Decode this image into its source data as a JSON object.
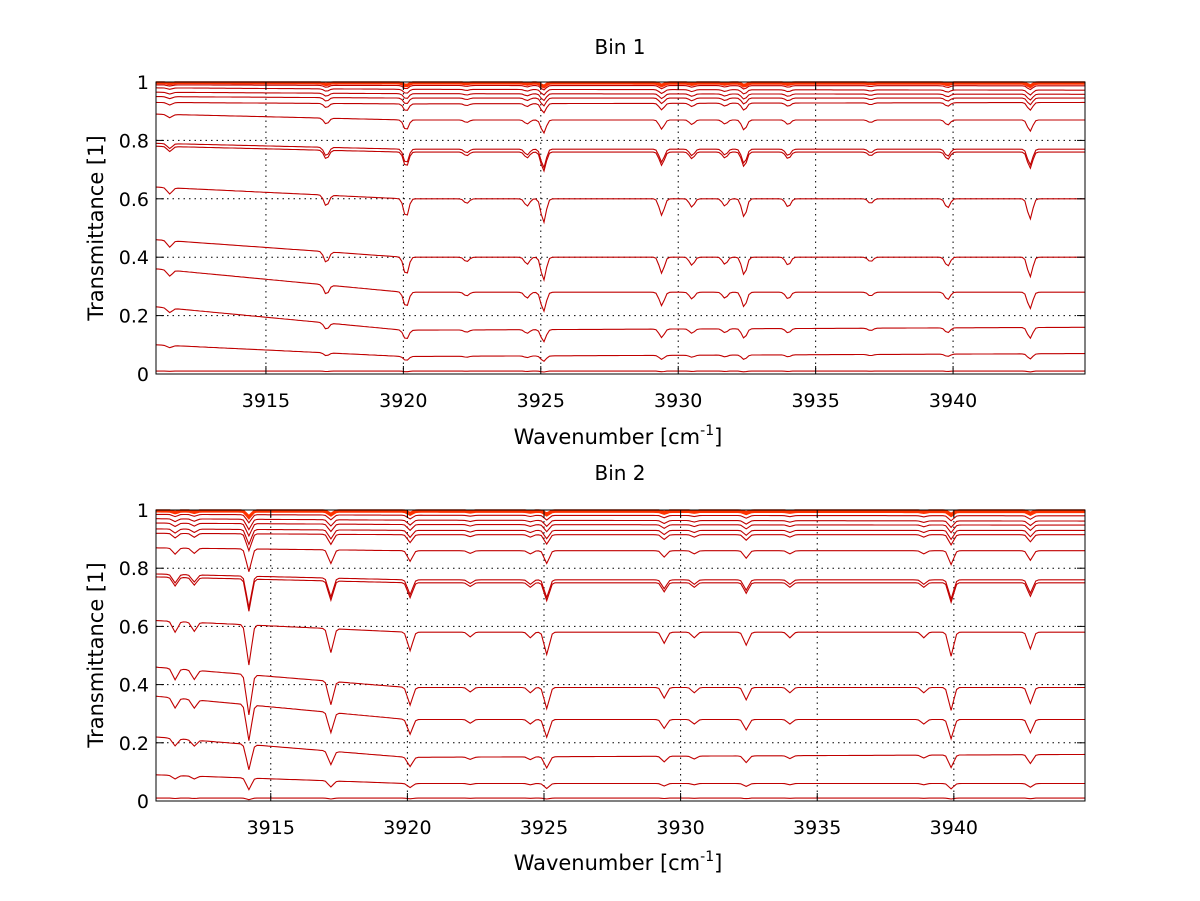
{
  "chart_data": [
    {
      "type": "line",
      "title": "Bin 1",
      "xlabel_main": "Wavenumber [cm",
      "xlabel_sup": "-1",
      "xlabel_close": "]",
      "ylabel": "Transmittance [1]",
      "xlim": [
        3911,
        3944.8
      ],
      "ylim": [
        0,
        1
      ],
      "xticks": [
        3915,
        3920,
        3925,
        3930,
        3935,
        3940
      ],
      "yticks": [
        0,
        0.2,
        0.4,
        0.6,
        0.8,
        1
      ],
      "ytick_labels": [
        "0",
        "0.2",
        "0.4",
        "0.6",
        "0.8",
        "1"
      ],
      "grid": true,
      "line_color": "#c00000",
      "top_line_color": "#ff3300",
      "n_series": 17,
      "series_levels": {
        "wavenumber": [
          3911,
          3920,
          3944.8
        ],
        "levels": [
          [
            1.0,
            1.0,
            1.0
          ],
          [
            0.998,
            0.997,
            0.996
          ],
          [
            0.995,
            0.994,
            0.993
          ],
          [
            0.99,
            0.988,
            0.987
          ],
          [
            0.98,
            0.975,
            0.972
          ],
          [
            0.965,
            0.96,
            0.958
          ],
          [
            0.95,
            0.945,
            0.945
          ],
          [
            0.93,
            0.925,
            0.93
          ],
          [
            0.89,
            0.87,
            0.87
          ],
          [
            0.79,
            0.77,
            0.77
          ],
          [
            0.78,
            0.76,
            0.76
          ],
          [
            0.64,
            0.6,
            0.6
          ],
          [
            0.46,
            0.4,
            0.4
          ],
          [
            0.36,
            0.28,
            0.28
          ],
          [
            0.23,
            0.15,
            0.16
          ],
          [
            0.1,
            0.06,
            0.07
          ],
          [
            0.01,
            0.01,
            0.01
          ]
        ]
      },
      "absorption_lines": [
        {
          "wavenumber": 3911.5,
          "depth": 0.35
        },
        {
          "wavenumber": 3917.2,
          "depth": 0.6
        },
        {
          "wavenumber": 3920.1,
          "depth": 1.0
        },
        {
          "wavenumber": 3922.3,
          "depth": 0.25
        },
        {
          "wavenumber": 3924.5,
          "depth": 0.4
        },
        {
          "wavenumber": 3925.1,
          "depth": 1.3
        },
        {
          "wavenumber": 3929.4,
          "depth": 0.9
        },
        {
          "wavenumber": 3930.5,
          "depth": 0.45
        },
        {
          "wavenumber": 3931.7,
          "depth": 0.4
        },
        {
          "wavenumber": 3932.4,
          "depth": 1.0
        },
        {
          "wavenumber": 3934.0,
          "depth": 0.45
        },
        {
          "wavenumber": 3937.0,
          "depth": 0.25
        },
        {
          "wavenumber": 3939.8,
          "depth": 0.5
        },
        {
          "wavenumber": 3942.8,
          "depth": 1.1
        }
      ]
    },
    {
      "type": "line",
      "title": "Bin 2",
      "xlabel_main": "Wavenumber [cm",
      "xlabel_sup": "-1",
      "xlabel_close": "]",
      "ylabel": "Transmittance [1]",
      "xlim": [
        3910.8,
        3944.8
      ],
      "ylim": [
        0,
        1
      ],
      "xticks": [
        3915,
        3920,
        3925,
        3930,
        3935,
        3940
      ],
      "yticks": [
        0,
        0.2,
        0.4,
        0.6,
        0.8,
        1
      ],
      "ytick_labels": [
        "0",
        "0.2",
        "0.4",
        "0.6",
        "0.8",
        "1"
      ],
      "grid": true,
      "line_color": "#c00000",
      "top_line_color": "#ff3300",
      "n_series": 17,
      "series_levels": {
        "wavenumber": [
          3910.8,
          3920,
          3944.8
        ],
        "levels": [
          [
            1.0,
            1.0,
            1.0
          ],
          [
            0.998,
            0.997,
            0.996
          ],
          [
            0.994,
            0.993,
            0.992
          ],
          [
            0.985,
            0.982,
            0.98
          ],
          [
            0.97,
            0.965,
            0.962
          ],
          [
            0.955,
            0.95,
            0.948
          ],
          [
            0.935,
            0.93,
            0.93
          ],
          [
            0.92,
            0.915,
            0.915
          ],
          [
            0.87,
            0.86,
            0.86
          ],
          [
            0.78,
            0.76,
            0.76
          ],
          [
            0.77,
            0.75,
            0.75
          ],
          [
            0.62,
            0.58,
            0.58
          ],
          [
            0.46,
            0.39,
            0.39
          ],
          [
            0.36,
            0.28,
            0.28
          ],
          [
            0.22,
            0.15,
            0.16
          ],
          [
            0.09,
            0.06,
            0.06
          ],
          [
            0.01,
            0.01,
            0.01
          ]
        ]
      },
      "absorption_lines": [
        {
          "wavenumber": 3911.5,
          "depth": 0.6
        },
        {
          "wavenumber": 3912.2,
          "depth": 0.5
        },
        {
          "wavenumber": 3914.2,
          "depth": 2.2
        },
        {
          "wavenumber": 3917.2,
          "depth": 1.3
        },
        {
          "wavenumber": 3920.1,
          "depth": 1.0
        },
        {
          "wavenumber": 3922.3,
          "depth": 0.25
        },
        {
          "wavenumber": 3924.5,
          "depth": 0.3
        },
        {
          "wavenumber": 3925.1,
          "depth": 1.2
        },
        {
          "wavenumber": 3929.4,
          "depth": 0.6
        },
        {
          "wavenumber": 3930.5,
          "depth": 0.3
        },
        {
          "wavenumber": 3932.4,
          "depth": 0.7
        },
        {
          "wavenumber": 3934.0,
          "depth": 0.3
        },
        {
          "wavenumber": 3938.9,
          "depth": 0.3
        },
        {
          "wavenumber": 3939.9,
          "depth": 1.3
        },
        {
          "wavenumber": 3942.8,
          "depth": 0.9
        }
      ]
    }
  ]
}
